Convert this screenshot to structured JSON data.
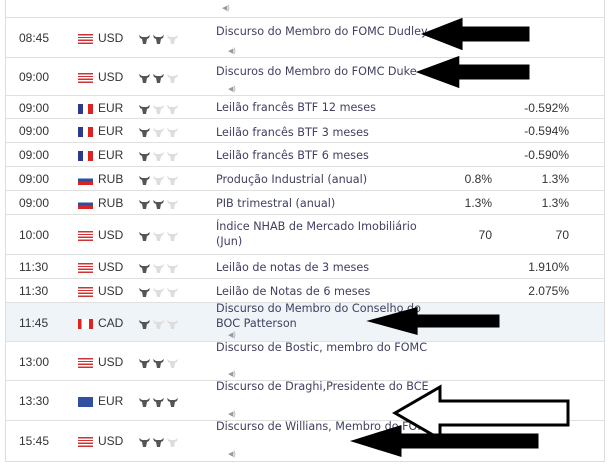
{
  "colors": {
    "highlight_row": "#eef4f8",
    "bull_active": "#555555",
    "bull_inactive": "#dddddd",
    "text": "#333333",
    "event_text": "#404060"
  },
  "icons": {
    "importance": "bull-icon",
    "speech": "speaker-icon"
  },
  "rows": [
    {
      "time": "08:45",
      "currency": "USD",
      "flag": "us",
      "importance": 2,
      "event": "Discurso do Membro do FOMC Dudley",
      "speech": true,
      "actual": "",
      "forecast": "",
      "arrow": true
    },
    {
      "time": "09:00",
      "currency": "USD",
      "flag": "us",
      "importance": 2,
      "event": "Discuros do Membro do FOMC Duke",
      "speech": true,
      "actual": "",
      "forecast": "",
      "arrow": true
    },
    {
      "time": "09:00",
      "currency": "EUR",
      "flag": "fr",
      "importance": 1,
      "event": "Leilão francês BTF 12 meses",
      "speech": false,
      "actual": "",
      "forecast": "-0.592%"
    },
    {
      "time": "09:00",
      "currency": "EUR",
      "flag": "fr",
      "importance": 1,
      "event": "Leilão francês BTF 3 meses",
      "speech": false,
      "actual": "",
      "forecast": "-0.594%"
    },
    {
      "time": "09:00",
      "currency": "EUR",
      "flag": "fr",
      "importance": 1,
      "event": "Leilão francês BTF 6 meses",
      "speech": false,
      "actual": "",
      "forecast": "-0.590%"
    },
    {
      "time": "09:00",
      "currency": "RUB",
      "flag": "ru",
      "importance": 1,
      "event": "Produção Industrial (anual)",
      "speech": false,
      "actual": "0.8%",
      "forecast": "1.3%"
    },
    {
      "time": "09:00",
      "currency": "RUB",
      "flag": "ru",
      "importance": 2,
      "event": "PIB trimestral (anual)",
      "speech": false,
      "actual": "1.3%",
      "forecast": "1.3%"
    },
    {
      "time": "10:00",
      "currency": "USD",
      "flag": "us",
      "importance": 1,
      "event": "Índice NHAB de Mercado Imobiliário (Jun)",
      "speech": false,
      "actual": "70",
      "forecast": "70"
    },
    {
      "time": "11:30",
      "currency": "USD",
      "flag": "us",
      "importance": 1,
      "event": "Leilão de notas de 3 meses",
      "speech": false,
      "actual": "",
      "forecast": "1.910%"
    },
    {
      "time": "11:30",
      "currency": "USD",
      "flag": "us",
      "importance": 1,
      "event": "Leilão de Notas de 6 meses",
      "speech": false,
      "actual": "",
      "forecast": "2.075%"
    },
    {
      "time": "11:45",
      "currency": "CAD",
      "flag": "ca",
      "importance": 1,
      "event": "Discurso  do Membro do Conselho do BOC Patterson",
      "speech": true,
      "actual": "",
      "forecast": "",
      "arrow": true,
      "highlighted": true
    },
    {
      "time": "13:00",
      "currency": "USD",
      "flag": "us",
      "importance": 2,
      "event": "Discurso de Bostic, membro do FOMC",
      "speech": true,
      "actual": "",
      "forecast": ""
    },
    {
      "time": "13:30",
      "currency": "EUR",
      "flag": "eu",
      "importance": 3,
      "event": "Discurso de Draghi,Presidente do BCE",
      "speech": true,
      "actual": "",
      "forecast": "",
      "arrow": true
    },
    {
      "time": "15:45",
      "currency": "USD",
      "flag": "us",
      "importance": 2,
      "event": "Discurso de Willians, Membro do FOMC",
      "speech": true,
      "actual": "",
      "forecast": "",
      "arrow": true
    }
  ]
}
